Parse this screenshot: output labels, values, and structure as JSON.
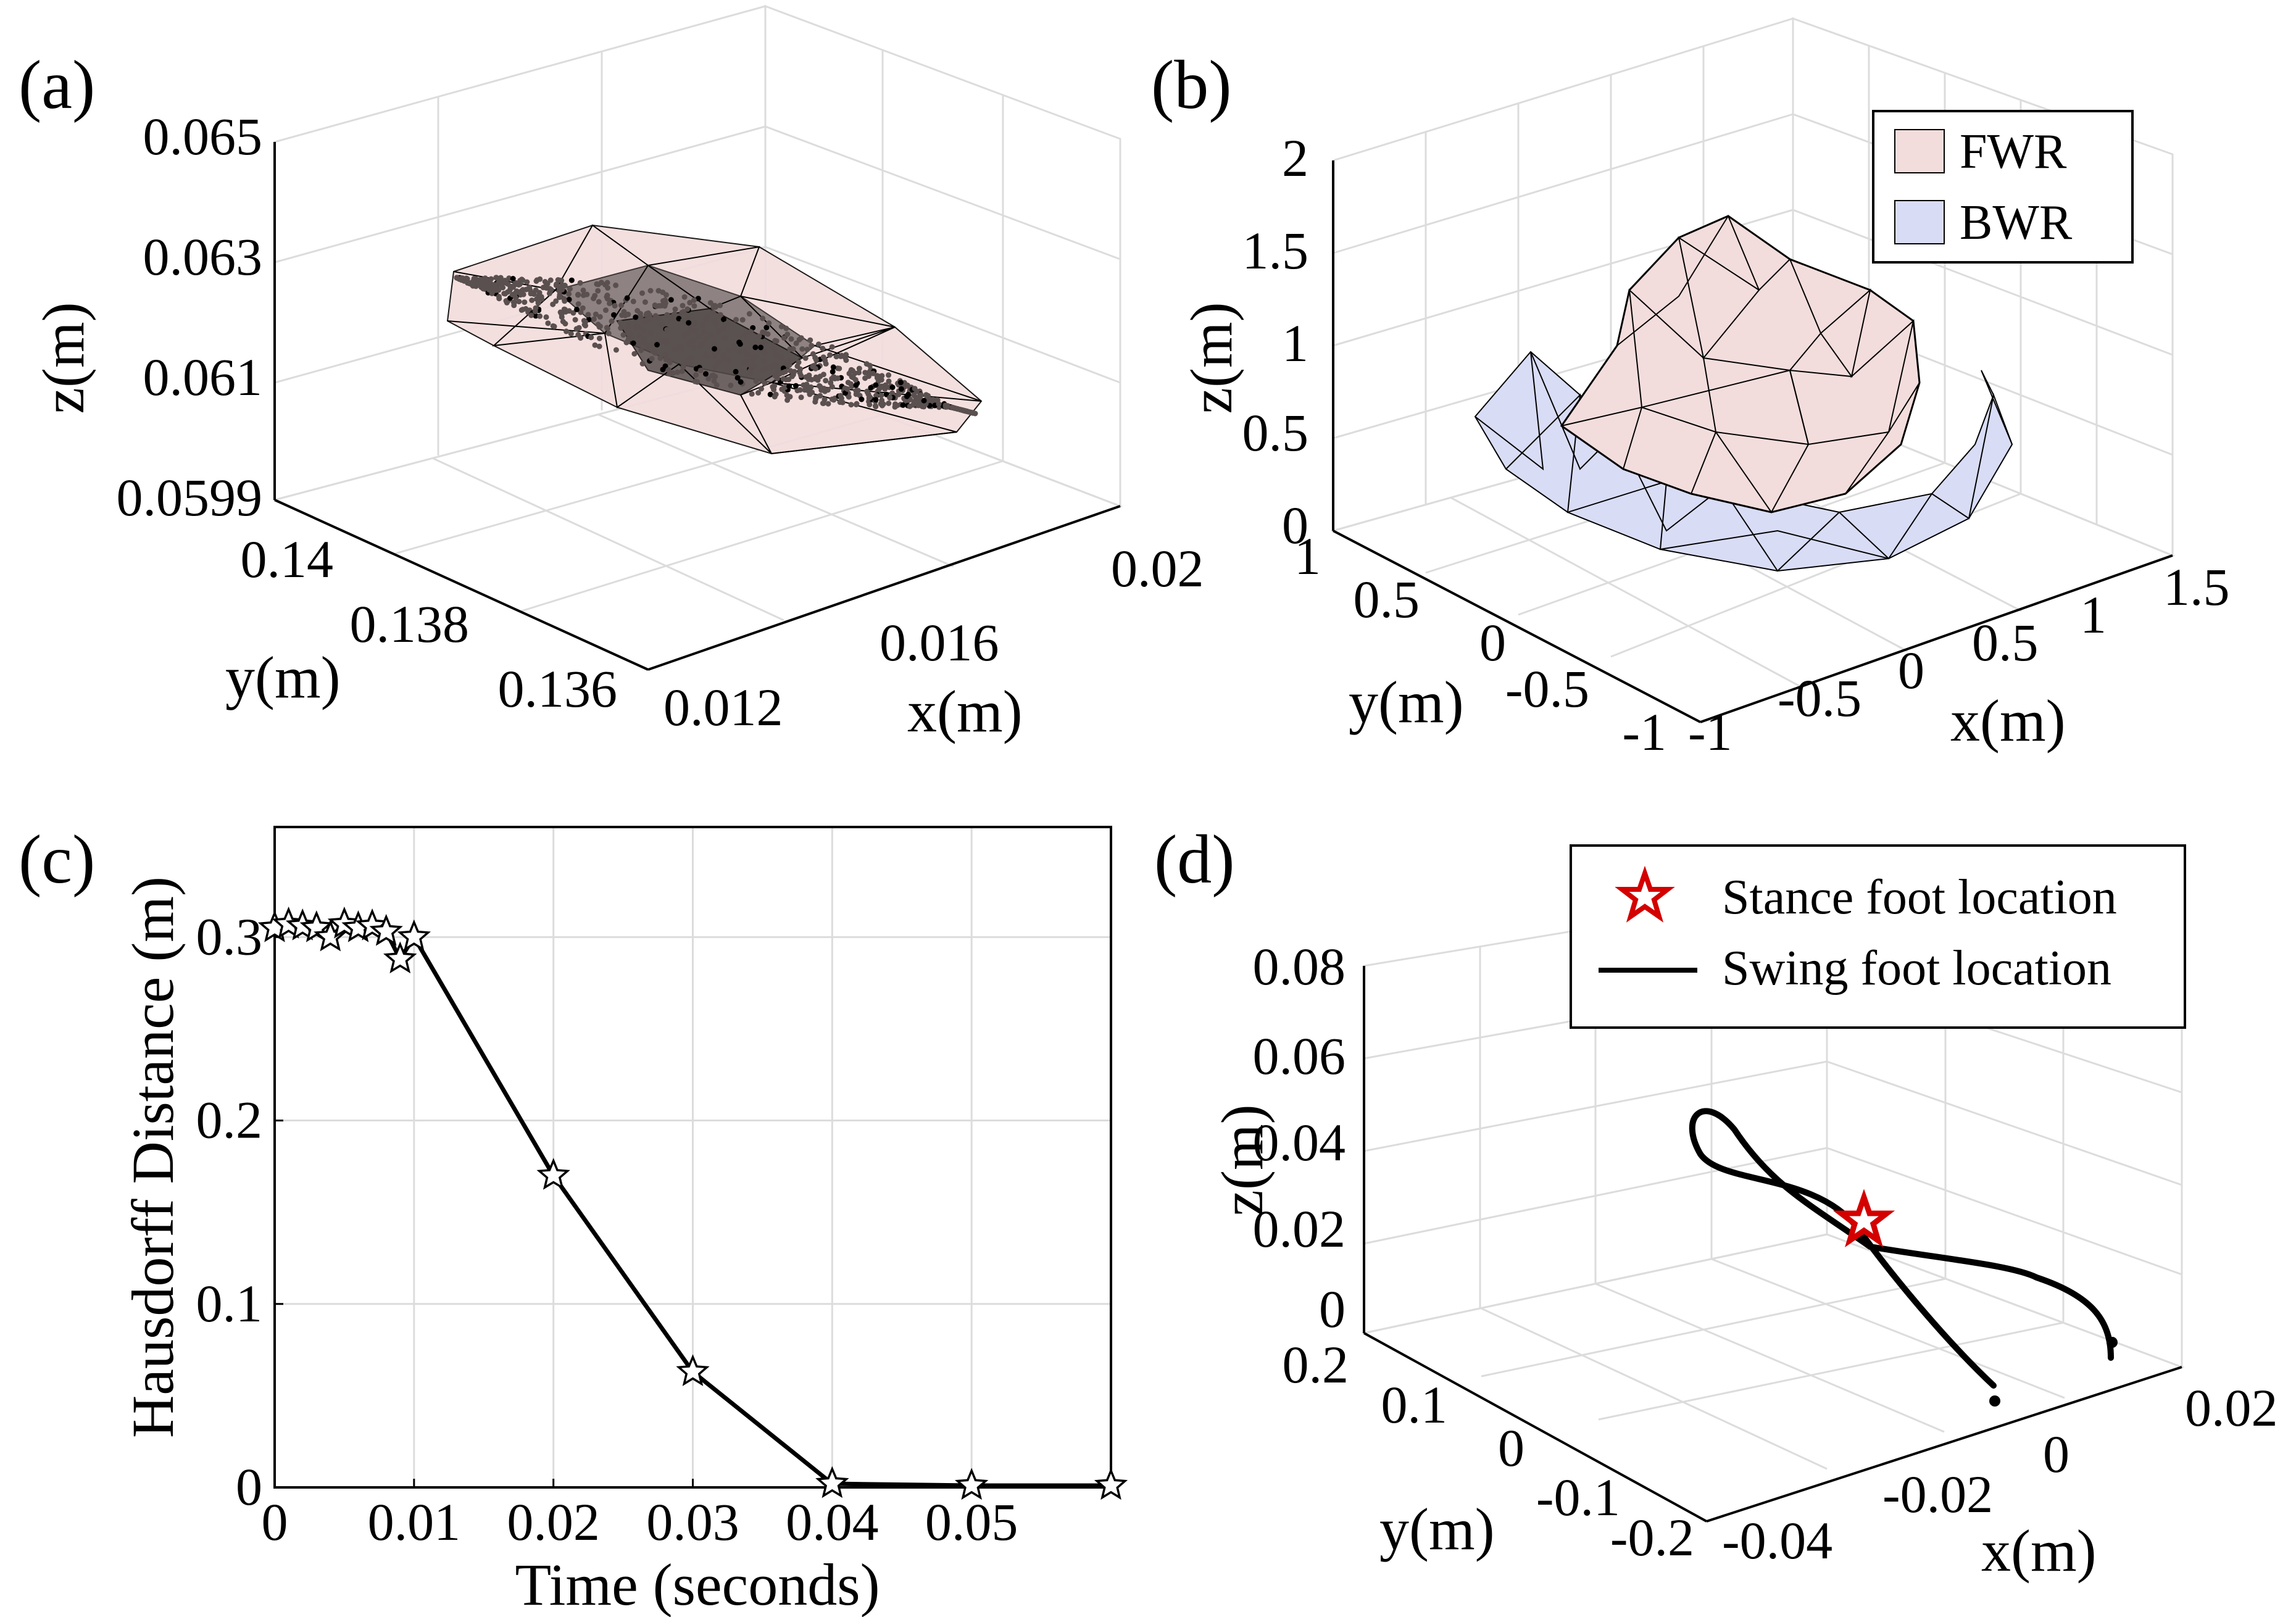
{
  "figure": {
    "panels": [
      {
        "id": "a",
        "tag": "(a)",
        "xlabel": "x(m)",
        "ylabel": "y(m)",
        "zlabel": "z(m)",
        "xticks": [
          "0.012",
          "0.016",
          "0.02"
        ],
        "yticks": [
          "0.136",
          "0.138",
          "0.14"
        ],
        "zticks": [
          "0.0599",
          "0.061",
          "0.063",
          "0.065"
        ]
      },
      {
        "id": "b",
        "tag": "(b)",
        "xlabel": "x(m)",
        "ylabel": "y(m)",
        "zlabel": "z(m)",
        "xticks": [
          "-1",
          "-0.5",
          "0",
          "0.5",
          "1",
          "1.5"
        ],
        "yticks": [
          "-1",
          "-0.5",
          "0",
          "0.5",
          "1"
        ],
        "zticks": [
          "0",
          "0.5",
          "1",
          "1.5",
          "2"
        ],
        "legend": [
          "FWR",
          "BWR"
        ]
      },
      {
        "id": "c",
        "tag": "(c)",
        "xlabel": "Time (seconds)",
        "ylabel": "Hausdorff  Distance (m)",
        "xticks": [
          "0",
          "0.01",
          "0.02",
          "0.03",
          "0.04",
          "0.05"
        ],
        "yticks": [
          "0",
          "0.1",
          "0.2",
          "0.3"
        ]
      },
      {
        "id": "d",
        "tag": "(d)",
        "xlabel": "x(m)",
        "ylabel": "y(m)",
        "zlabel": "z(m)",
        "xticks": [
          "-0.04",
          "-0.02",
          "0",
          "0.02"
        ],
        "yticks": [
          "-0.2",
          "-0.1",
          "0",
          "0.1",
          "0.2"
        ],
        "zticks": [
          "0",
          "0.02",
          "0.04",
          "0.06",
          "0.08"
        ],
        "legend": [
          "Stance foot location",
          "Swing foot location"
        ]
      }
    ]
  },
  "colors": {
    "fwr_fill": "#f3dcdc",
    "bwr_fill": "#d9dcf5",
    "mesh_edge": "#000000",
    "point": "#5a5050",
    "star_red": "#d40000",
    "line": "#000000"
  },
  "chart_data": [
    {
      "type": "scatter",
      "panel": "a",
      "description_of_axes": "3D",
      "xlim": [
        0.012,
        0.02
      ],
      "ylim": [
        0.136,
        0.14
      ],
      "zlim": [
        0.0599,
        0.065
      ],
      "grid": true
    },
    {
      "type": "area",
      "panel": "b",
      "xlim": [
        -1,
        1.5
      ],
      "ylim": [
        -1,
        1
      ],
      "zlim": [
        0,
        2
      ],
      "series": [
        {
          "name": "FWR"
        },
        {
          "name": "BWR"
        }
      ],
      "legend_position": "top-right",
      "grid": true
    },
    {
      "type": "line",
      "panel": "c",
      "x": [
        0,
        0.001,
        0.002,
        0.003,
        0.004,
        0.005,
        0.006,
        0.007,
        0.008,
        0.009,
        0.01,
        0.02,
        0.03,
        0.04,
        0.05,
        0.06
      ],
      "y": [
        0.305,
        0.307,
        0.306,
        0.305,
        0.3,
        0.307,
        0.305,
        0.306,
        0.303,
        0.288,
        0.3,
        0.17,
        0.063,
        0.002,
        0.001,
        0.001
      ],
      "marker": "star",
      "xlim": [
        0,
        0.06
      ],
      "ylim": [
        0,
        0.36
      ],
      "grid": true
    },
    {
      "type": "line",
      "panel": "d",
      "xlim": [
        -0.04,
        0.02
      ],
      "ylim": [
        -0.2,
        0.2
      ],
      "zlim": [
        0,
        0.08
      ],
      "series": [
        {
          "name": "Stance foot location"
        },
        {
          "name": "Swing foot location"
        }
      ],
      "legend_position": "top-right",
      "grid": true
    }
  ]
}
